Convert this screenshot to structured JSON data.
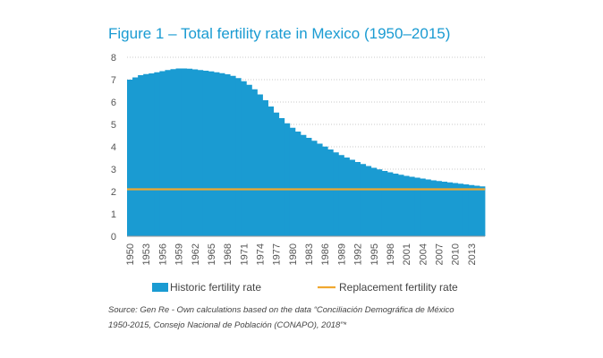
{
  "figure": {
    "title": "Figure 1 – Total fertility rate in Mexico (1950–2015)",
    "source_line1": "Source: Gen Re - Own calculations based on the data “Conciliación Demográfica de México",
    "source_line2": "1950-2015, Consejo Nacional de Población (CONAPO), 2018”*"
  },
  "chart_data": {
    "type": "area",
    "x": [
      1950,
      1951,
      1952,
      1953,
      1954,
      1955,
      1956,
      1957,
      1958,
      1959,
      1960,
      1961,
      1962,
      1963,
      1964,
      1965,
      1966,
      1967,
      1968,
      1969,
      1970,
      1971,
      1972,
      1973,
      1974,
      1975,
      1976,
      1977,
      1978,
      1979,
      1980,
      1981,
      1982,
      1983,
      1984,
      1985,
      1986,
      1987,
      1988,
      1989,
      1990,
      1991,
      1992,
      1993,
      1994,
      1995,
      1996,
      1997,
      1998,
      1999,
      2000,
      2001,
      2002,
      2003,
      2004,
      2005,
      2006,
      2007,
      2008,
      2009,
      2010,
      2011,
      2012,
      2013,
      2014,
      2015
    ],
    "series": [
      {
        "name": "Historic fertility rate",
        "color": "#1a9bd2",
        "values": [
          7.0,
          7.1,
          7.2,
          7.25,
          7.28,
          7.33,
          7.38,
          7.43,
          7.47,
          7.5,
          7.5,
          7.49,
          7.46,
          7.43,
          7.4,
          7.37,
          7.33,
          7.29,
          7.24,
          7.17,
          7.07,
          6.93,
          6.77,
          6.57,
          6.34,
          6.08,
          5.8,
          5.53,
          5.28,
          5.05,
          4.85,
          4.68,
          4.53,
          4.4,
          4.27,
          4.14,
          4.01,
          3.88,
          3.75,
          3.63,
          3.52,
          3.42,
          3.32,
          3.23,
          3.14,
          3.06,
          2.99,
          2.92,
          2.86,
          2.8,
          2.75,
          2.7,
          2.66,
          2.62,
          2.58,
          2.54,
          2.5,
          2.47,
          2.44,
          2.41,
          2.38,
          2.35,
          2.32,
          2.29,
          2.26,
          2.23
        ]
      },
      {
        "name": "Replacement fertility rate",
        "color": "#f0a830",
        "value": 2.1
      }
    ],
    "x_tick_labels": [
      "1950",
      "1953",
      "1956",
      "1959",
      "1962",
      "1965",
      "1968",
      "1971",
      "1974",
      "1977",
      "1980",
      "1983",
      "1986",
      "1989",
      "1992",
      "1995",
      "1998",
      "2001",
      "2004",
      "2007",
      "2010",
      "2013"
    ],
    "y_ticks": [
      "0",
      "1",
      "2",
      "3",
      "4",
      "5",
      "6",
      "7",
      "8"
    ],
    "ylim": [
      0,
      8
    ],
    "grid": true,
    "legend_position": "bottom"
  }
}
